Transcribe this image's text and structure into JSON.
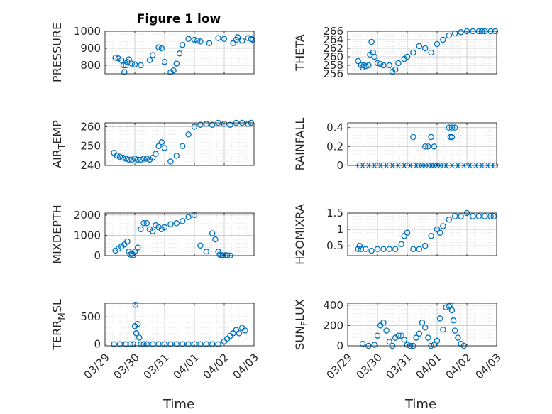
{
  "figure": {
    "title": "Figure 1 low",
    "xlabel": "Time"
  },
  "x_tick_labels": [
    "03/29",
    "03/30",
    "03/31",
    "04/01",
    "04/02",
    "04/03"
  ],
  "colors": {
    "marker": "#0072BD",
    "axis": "#262626",
    "grid": "#b0b0b0",
    "background": "#ffffff"
  },
  "chart_data": [
    {
      "type": "scatter",
      "ylabel": "PRESSURE",
      "title": "Figure 1 low",
      "ylim": [
        750,
        1000
      ],
      "yticks": [
        800,
        900,
        1000
      ],
      "xlim": [
        0,
        5
      ],
      "grid": true,
      "series": [
        {
          "x": [
            0.35,
            0.45,
            0.55,
            0.62,
            0.65,
            0.7,
            0.75,
            0.8,
            0.9,
            1.0,
            1.2,
            1.5,
            1.6,
            1.8,
            1.9,
            2.0,
            2.2,
            2.3,
            2.4,
            2.5,
            2.6,
            2.8,
            3.0,
            3.1,
            3.2,
            3.5,
            3.8,
            4.0,
            4.3,
            4.4,
            4.45,
            4.6,
            4.8,
            4.9,
            4.95
          ],
          "y": [
            845,
            840,
            830,
            800,
            760,
            800,
            820,
            835,
            810,
            805,
            800,
            830,
            860,
            905,
            900,
            820,
            760,
            770,
            810,
            870,
            920,
            955,
            950,
            945,
            940,
            930,
            960,
            955,
            930,
            950,
            965,
            945,
            960,
            955,
            950
          ]
        }
      ]
    },
    {
      "type": "scatter",
      "ylabel": "THETA",
      "ylim": [
        256,
        266
      ],
      "yticks": [
        256,
        258,
        260,
        262,
        264,
        266
      ],
      "xlim": [
        0,
        5
      ],
      "grid": true,
      "series": [
        {
          "x": [
            0.35,
            0.45,
            0.5,
            0.55,
            0.6,
            0.7,
            0.75,
            0.8,
            0.85,
            0.9,
            1.0,
            1.1,
            1.2,
            1.4,
            1.5,
            1.6,
            1.7,
            1.9,
            2.0,
            2.2,
            2.4,
            2.6,
            2.8,
            3.0,
            3.2,
            3.4,
            3.6,
            3.8,
            4.0,
            4.2,
            4.4,
            4.5,
            4.6,
            4.8,
            4.95
          ],
          "y": [
            259,
            258,
            257.5,
            258,
            257.8,
            258,
            260.5,
            263.5,
            261,
            260,
            258.5,
            258.3,
            258,
            258,
            256.5,
            257,
            258.5,
            259.5,
            260,
            261,
            262.5,
            262,
            261,
            263,
            264,
            265,
            265.5,
            265.8,
            266,
            266,
            266,
            266,
            266,
            266,
            266
          ]
        }
      ]
    },
    {
      "type": "scatter",
      "ylabel": "AIR_TEMP",
      "ylim": [
        240,
        262
      ],
      "yticks": [
        240,
        250,
        260
      ],
      "xlim": [
        0,
        5
      ],
      "grid": true,
      "series": [
        {
          "x": [
            0.3,
            0.4,
            0.5,
            0.6,
            0.7,
            0.8,
            0.9,
            1.0,
            1.1,
            1.2,
            1.3,
            1.4,
            1.5,
            1.6,
            1.7,
            1.8,
            1.9,
            2.0,
            2.2,
            2.4,
            2.6,
            2.8,
            3.0,
            3.2,
            3.4,
            3.6,
            3.8,
            4.0,
            4.2,
            4.4,
            4.6,
            4.8,
            4.9
          ],
          "y": [
            246.5,
            245,
            244.5,
            244,
            243.5,
            243,
            243,
            243.5,
            243,
            243,
            243.5,
            243.5,
            243,
            244,
            246,
            250,
            252,
            249,
            242,
            245,
            250,
            256,
            260,
            261,
            261.5,
            261,
            262,
            261.5,
            261,
            262,
            262,
            261.5,
            262
          ]
        }
      ]
    },
    {
      "type": "scatter",
      "ylabel": "RAINFALL",
      "ylim": [
        0,
        0.45
      ],
      "yticks": [
        0,
        0.2,
        0.4
      ],
      "xlim": [
        0,
        5
      ],
      "grid": true,
      "series": [
        {
          "x": [
            0.4,
            0.6,
            0.8,
            1.0,
            1.2,
            1.4,
            1.6,
            1.8,
            2.0,
            2.2,
            2.4,
            2.5,
            2.6,
            2.7,
            2.8,
            2.9,
            3.0,
            3.1,
            3.2,
            3.4,
            3.6,
            3.8,
            4.0,
            4.2,
            4.4,
            4.6,
            4.8,
            4.95,
            2.2,
            2.6,
            2.7,
            2.8,
            2.9,
            3.4,
            3.45,
            3.5,
            3.6,
            3.5
          ],
          "y": [
            0,
            0,
            0,
            0,
            0,
            0,
            0,
            0,
            0,
            0,
            0,
            0,
            0,
            0,
            0,
            0,
            0,
            0,
            0,
            0,
            0,
            0,
            0,
            0,
            0,
            0,
            0,
            0,
            0.3,
            0.2,
            0.2,
            0.3,
            0.2,
            0.4,
            0.3,
            0.4,
            0.4,
            0.3
          ]
        }
      ]
    },
    {
      "type": "scatter",
      "ylabel": "MIXDEPTH",
      "ylim": [
        0,
        2100
      ],
      "yticks": [
        0,
        1000,
        2000
      ],
      "xlim": [
        0,
        5
      ],
      "grid": true,
      "series": [
        {
          "x": [
            0.35,
            0.45,
            0.55,
            0.65,
            0.75,
            0.8,
            0.85,
            0.9,
            0.95,
            1.0,
            1.1,
            1.2,
            1.3,
            1.4,
            1.5,
            1.6,
            1.7,
            1.8,
            1.9,
            2.0,
            2.2,
            2.4,
            2.6,
            2.8,
            3.0,
            3.2,
            3.4,
            3.6,
            3.7,
            3.8,
            3.85,
            3.9,
            3.95,
            4.05,
            4.1,
            4.2
          ],
          "y": [
            250,
            350,
            450,
            550,
            700,
            200,
            50,
            100,
            20,
            200,
            400,
            1300,
            1600,
            1600,
            1300,
            1200,
            1500,
            1400,
            1300,
            1400,
            1550,
            1600,
            1700,
            1900,
            2000,
            500,
            200,
            1100,
            800,
            200,
            50,
            20,
            10,
            20,
            10,
            5
          ]
        }
      ]
    },
    {
      "type": "scatter",
      "ylabel": "H2OMIXRA",
      "ylim": [
        0.2,
        1.5
      ],
      "yticks": [
        0.5,
        1,
        1.5
      ],
      "xlim": [
        0,
        5
      ],
      "grid": true,
      "series": [
        {
          "x": [
            0.35,
            0.4,
            0.45,
            0.6,
            0.8,
            1.0,
            1.2,
            1.4,
            1.6,
            1.8,
            1.9,
            2.0,
            2.2,
            2.4,
            2.6,
            2.8,
            3.0,
            3.1,
            3.2,
            3.4,
            3.6,
            3.8,
            4.0,
            4.2,
            4.4,
            4.6,
            4.8,
            4.9
          ],
          "y": [
            0.4,
            0.5,
            0.4,
            0.4,
            0.35,
            0.4,
            0.4,
            0.4,
            0.4,
            0.55,
            0.8,
            0.9,
            0.4,
            0.4,
            0.5,
            0.8,
            1.0,
            0.9,
            1.1,
            1.3,
            1.4,
            1.4,
            1.5,
            1.4,
            1.4,
            1.4,
            1.4,
            1.4
          ]
        }
      ]
    },
    {
      "type": "scatter",
      "ylabel": "TERR_MSL",
      "ylim": [
        -30,
        750
      ],
      "yticks": [
        0,
        500
      ],
      "xlim": [
        0,
        5
      ],
      "grid": true,
      "series": [
        {
          "x": [
            0.3,
            0.5,
            0.7,
            0.85,
            0.95,
            1.0,
            1.02,
            1.05,
            1.1,
            1.15,
            1.2,
            1.3,
            1.4,
            1.6,
            1.8,
            2.0,
            2.2,
            2.4,
            2.6,
            2.8,
            3.0,
            3.2,
            3.4,
            3.6,
            3.8,
            4.0,
            4.1,
            4.2,
            4.3,
            4.4,
            4.5,
            4.6,
            4.7
          ],
          "y": [
            0,
            0,
            0,
            0,
            0,
            330,
            720,
            200,
            370,
            120,
            0,
            0,
            0,
            0,
            0,
            0,
            0,
            0,
            0,
            0,
            0,
            0,
            0,
            0,
            0,
            50,
            100,
            150,
            200,
            260,
            200,
            300,
            250
          ]
        }
      ]
    },
    {
      "type": "scatter",
      "ylabel": "SUN_FLUX",
      "ylim": [
        0,
        420
      ],
      "yticks": [
        0,
        200,
        400
      ],
      "xlim": [
        0,
        5
      ],
      "grid": true,
      "series": [
        {
          "x": [
            0.5,
            0.7,
            0.9,
            1.0,
            1.1,
            1.2,
            1.3,
            1.4,
            1.5,
            1.6,
            1.7,
            1.8,
            1.9,
            2.0,
            2.1,
            2.2,
            2.3,
            2.4,
            2.5,
            2.6,
            2.7,
            2.8,
            2.9,
            3.0,
            3.1,
            3.2,
            3.3,
            3.4,
            3.45,
            3.5,
            3.55,
            3.6,
            3.7,
            3.8,
            3.9
          ],
          "y": [
            20,
            0,
            10,
            100,
            200,
            230,
            150,
            40,
            0,
            80,
            100,
            100,
            60,
            10,
            0,
            0,
            80,
            120,
            230,
            180,
            80,
            0,
            10,
            50,
            270,
            160,
            380,
            390,
            400,
            350,
            250,
            150,
            80,
            20,
            0
          ]
        }
      ]
    }
  ]
}
